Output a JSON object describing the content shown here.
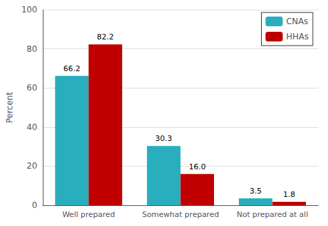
{
  "chart_data": {
    "type": "bar",
    "categories": [
      "Well prepared",
      "Somewhat prepared",
      "Not prepared at all"
    ],
    "series": [
      {
        "name": "CNAs",
        "color": "#29AEBE",
        "values": [
          66.2,
          30.3,
          3.5
        ],
        "value_labels": [
          "66.2",
          "30.3",
          "3.5"
        ]
      },
      {
        "name": "HHAs",
        "color": "#C00000",
        "values": [
          82.2,
          16.0,
          1.8
        ],
        "value_labels": [
          "82.2",
          "16.0",
          "1.8"
        ]
      }
    ],
    "ylabel": "Percent",
    "ylim": [
      0,
      100
    ],
    "yticks": [
      0,
      20,
      40,
      60,
      80,
      100
    ],
    "grid": true,
    "legend": "upper right",
    "data_labels": true
  }
}
